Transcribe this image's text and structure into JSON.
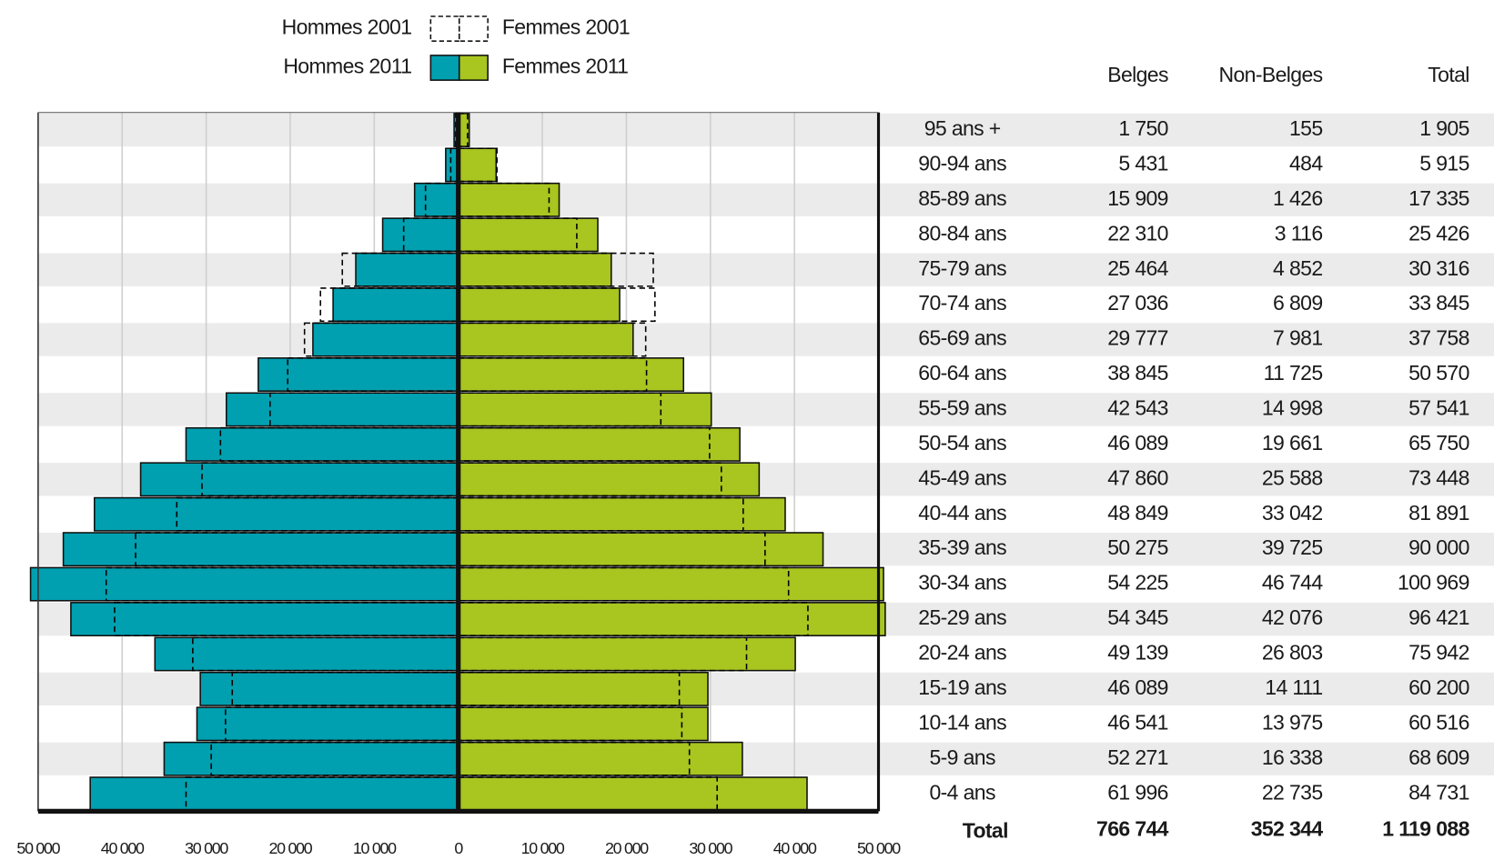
{
  "chart_data": {
    "type": "pyramid",
    "categories": [
      "95 ans +",
      "90-94 ans",
      "85-89 ans",
      "80-84 ans",
      "75-79 ans",
      "70-74 ans",
      "65-69 ans",
      "60-64 ans",
      "55-59 ans",
      "50-54 ans",
      "45-49 ans",
      "40-44 ans",
      "35-39 ans",
      "30-34 ans",
      "25-29 ans",
      "20-24 ans",
      "15-19 ans",
      "10-14 ans",
      "5-9 ans",
      "0-4 ans"
    ],
    "series": [
      {
        "name": "Hommes 2011",
        "color": "#00a0b0",
        "dashed": false,
        "values": [
          -500,
          -1500,
          -5200,
          -9000,
          -12200,
          -14900,
          -17300,
          -23800,
          -27600,
          -32400,
          -37800,
          -43300,
          -47000,
          -50900,
          -46100,
          -36100,
          -30700,
          -31100,
          -35000,
          -43800
        ]
      },
      {
        "name": "Femmes 2011",
        "color": "#a8c520",
        "dashed": false,
        "values": [
          1300,
          4500,
          12000,
          16600,
          18200,
          19200,
          20800,
          26800,
          30100,
          33500,
          35800,
          38900,
          43400,
          50600,
          50800,
          40100,
          29700,
          29700,
          33800,
          41500
        ]
      },
      {
        "name": "Hommes 2001",
        "color": "#000000",
        "dashed": true,
        "values": [
          -300,
          -900,
          -3900,
          -6500,
          -13800,
          -16400,
          -18300,
          -20300,
          -22400,
          -28300,
          -30500,
          -33500,
          -38400,
          -41900,
          -40900,
          -31600,
          -26900,
          -27700,
          -29400,
          -32400
        ]
      },
      {
        "name": "Femmes 2001",
        "color": "#000000",
        "dashed": true,
        "values": [
          1100,
          4600,
          10800,
          14100,
          23200,
          23400,
          22300,
          22400,
          24100,
          29900,
          31300,
          33900,
          36500,
          39300,
          41600,
          34300,
          26300,
          26600,
          27500,
          30800
        ]
      }
    ],
    "xlim": [
      -50000,
      50000
    ],
    "xticks": [
      {
        "value": -50000,
        "label": "50 000"
      },
      {
        "value": -40000,
        "label": "40 000"
      },
      {
        "value": -30000,
        "label": "30 000"
      },
      {
        "value": -20000,
        "label": "20 000"
      },
      {
        "value": -10000,
        "label": "10 000"
      },
      0,
      {
        "value": 10000,
        "label": "10 000"
      },
      {
        "value": 20000,
        "label": "20 000"
      },
      {
        "value": 30000,
        "label": "30 000"
      },
      {
        "value": 40000,
        "label": "40 000"
      },
      {
        "value": 50000,
        "label": "50 000"
      }
    ],
    "grid": true
  },
  "table": {
    "columns": [
      "Belges",
      "Non-Belges",
      "Total"
    ],
    "rows": [
      [
        "1 750",
        "155",
        "1 905"
      ],
      [
        "5 431",
        "484",
        "5 915"
      ],
      [
        "15 909",
        "1 426",
        "17 335"
      ],
      [
        "22 310",
        "3 116",
        "25 426"
      ],
      [
        "25 464",
        "4 852",
        "30 316"
      ],
      [
        "27 036",
        "6 809",
        "33 845"
      ],
      [
        "29 777",
        "7 981",
        "37 758"
      ],
      [
        "38 845",
        "11 725",
        "50 570"
      ],
      [
        "42 543",
        "14 998",
        "57 541"
      ],
      [
        "46 089",
        "19 661",
        "65 750"
      ],
      [
        "47 860",
        "25 588",
        "73 448"
      ],
      [
        "48 849",
        "33 042",
        "81 891"
      ],
      [
        "50 275",
        "39 725",
        "90 000"
      ],
      [
        "54 225",
        "46 744",
        "100 969"
      ],
      [
        "54 345",
        "42 076",
        "96 421"
      ],
      [
        "49 139",
        "26 803",
        "75 942"
      ],
      [
        "46 089",
        "14 111",
        "60 200"
      ],
      [
        "46 541",
        "13 975",
        "60 516"
      ],
      [
        "52 271",
        "16 338",
        "68 609"
      ],
      [
        "61 996",
        "22 735",
        "84 731"
      ]
    ],
    "total": {
      "label": "Total",
      "values": [
        "766 744",
        "352 344",
        "1 119 088"
      ]
    }
  }
}
